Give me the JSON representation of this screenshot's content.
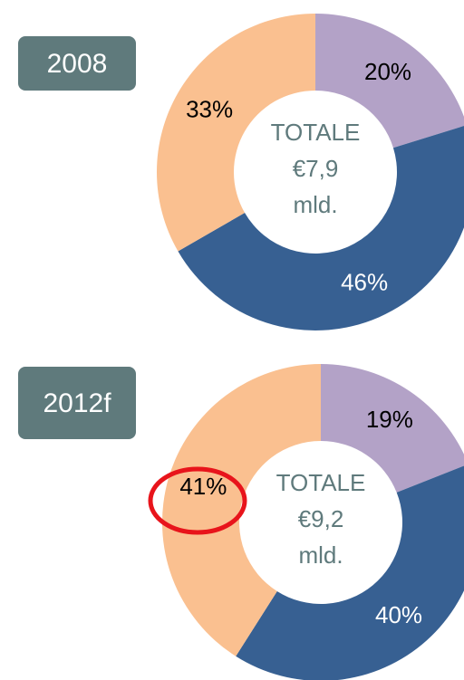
{
  "chart_data": [
    {
      "type": "pie",
      "title": "2008",
      "values": [
        20,
        46,
        33
      ],
      "value_labels": [
        "20%",
        "46%",
        "33%"
      ],
      "colors": [
        "#b3a2c7",
        "#376092",
        "#fac090"
      ],
      "label_colors": [
        "#000000",
        "#ffffff",
        "#000000"
      ],
      "center_text": [
        "TOTALE",
        "€7,9",
        "mld."
      ]
    },
    {
      "type": "pie",
      "title": "2012f",
      "values": [
        19,
        40,
        41
      ],
      "value_labels": [
        "19%",
        "40%",
        "41%"
      ],
      "colors": [
        "#b3a2c7",
        "#376092",
        "#fac090"
      ],
      "label_colors": [
        "#000000",
        "#ffffff",
        "#000000"
      ],
      "center_text": [
        "TOTALE",
        "€9,2",
        "mld."
      ]
    }
  ]
}
